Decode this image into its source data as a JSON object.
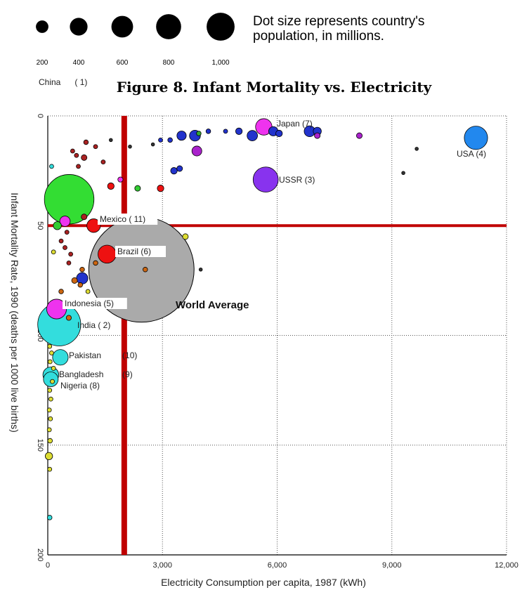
{
  "chart_data": {
    "type": "scatter",
    "title": "Figure 8.  Infant Mortality vs. Electricity",
    "xlabel": "Electricity  Consumption per capita, 1987 (kWh)",
    "ylabel": "Infant Mortality Rate, 1990 (deaths per 1000 live births)",
    "xlim": [
      0,
      12000
    ],
    "ylim": [
      0,
      200
    ],
    "y_inverted": true,
    "xticks": [
      "0",
      "3,000",
      "6,000",
      "9,000",
      "12,000"
    ],
    "yticks": [
      "0",
      "50",
      "100",
      "150",
      "200"
    ],
    "xtick_values": [
      0,
      3000,
      6000,
      9000,
      12000
    ],
    "ytick_values": [
      0,
      50,
      100,
      150,
      200
    ],
    "grid": "dotted",
    "size_legend": {
      "text_line1": "Dot size represents country's",
      "text_line2": "population, in millions.",
      "values": [
        200,
        400,
        600,
        800,
        1000
      ],
      "labels": [
        "200",
        "400",
        "600",
        "800",
        "1,000"
      ]
    },
    "world_average": {
      "label": "World Average",
      "x": 2000,
      "y": 50,
      "color": "#c00000"
    },
    "labeled_points": [
      {
        "label": "China      ( 1)",
        "x": 560,
        "y": 38,
        "pop": 1130,
        "color": "#33dd33"
      },
      {
        "label": "India ( 2)",
        "x": 300,
        "y": 95,
        "pop": 850,
        "color": "#33dddd"
      },
      {
        "label": "USSR (3)",
        "x": 5700,
        "y": 29,
        "pop": 290,
        "color": "#8833ee"
      },
      {
        "label": "USA (4)",
        "x": 11200,
        "y": 10,
        "pop": 250,
        "color": "#2288ee"
      },
      {
        "label": "Indonesia (5)",
        "x": 230,
        "y": 88,
        "pop": 180,
        "color": "#ee33ee"
      },
      {
        "label": "Brazil (6)",
        "x": 1550,
        "y": 63,
        "pop": 150,
        "color": "#ee1111"
      },
      {
        "label": "Japan (7)",
        "x": 5650,
        "y": 5,
        "pop": 124,
        "color": "#ee33ee"
      },
      {
        "label": "Nigeria (8)",
        "x": 80,
        "y": 120,
        "pop": 100,
        "color": "#33dddd"
      },
      {
        "label": "Bangladesh        (9)",
        "x": 80,
        "y": 118,
        "pop": 115,
        "color": "#33dddd"
      },
      {
        "label": "Pakistan         (10)",
        "x": 330,
        "y": 110,
        "pop": 112,
        "color": "#33dddd"
      },
      {
        "label": "Mexico ( 11)",
        "x": 1200,
        "y": 50,
        "pop": 85,
        "color": "#ee1111"
      }
    ],
    "world_avg_bubble": {
      "x": 2450,
      "y": 70,
      "pop": 5300,
      "color": "#aaaaaa"
    },
    "other_points": [
      {
        "x": 900,
        "y": 74,
        "pop": 60,
        "color": "#2233cc"
      },
      {
        "x": 3500,
        "y": 9,
        "pop": 40,
        "color": "#2233cc"
      },
      {
        "x": 3850,
        "y": 9,
        "pop": 55,
        "color": "#2233cc"
      },
      {
        "x": 5000,
        "y": 7,
        "pop": 20,
        "color": "#2233cc"
      },
      {
        "x": 5350,
        "y": 9,
        "pop": 50,
        "color": "#2233cc"
      },
      {
        "x": 5900,
        "y": 7,
        "pop": 40,
        "color": "#2233cc"
      },
      {
        "x": 6850,
        "y": 7,
        "pop": 55,
        "color": "#2233cc"
      },
      {
        "x": 7050,
        "y": 7,
        "pop": 30,
        "color": "#2233cc"
      },
      {
        "x": 6050,
        "y": 8,
        "pop": 20,
        "color": "#2233cc"
      },
      {
        "x": 4200,
        "y": 7,
        "pop": 10,
        "color": "#2233cc"
      },
      {
        "x": 4650,
        "y": 7,
        "pop": 8,
        "color": "#2233cc"
      },
      {
        "x": 3300,
        "y": 25,
        "pop": 20,
        "color": "#2233cc"
      },
      {
        "x": 3450,
        "y": 24,
        "pop": 15,
        "color": "#2233cc"
      },
      {
        "x": 3200,
        "y": 11,
        "pop": 10,
        "color": "#2233cc"
      },
      {
        "x": 2950,
        "y": 11,
        "pop": 8,
        "color": "#2233cc"
      },
      {
        "x": 3900,
        "y": 16,
        "pop": 45,
        "color": "#aa22cc"
      },
      {
        "x": 3950,
        "y": 8,
        "pop": 10,
        "color": "#33aa33"
      },
      {
        "x": 7050,
        "y": 9,
        "pop": 15,
        "color": "#aa22cc"
      },
      {
        "x": 8150,
        "y": 9,
        "pop": 15,
        "color": "#aa22cc"
      },
      {
        "x": 1900,
        "y": 29,
        "pop": 12,
        "color": "#ee33ee"
      },
      {
        "x": 250,
        "y": 50,
        "pop": 30,
        "color": "#33cc33"
      },
      {
        "x": 450,
        "y": 48,
        "pop": 50,
        "color": "#ee33ee"
      },
      {
        "x": 2350,
        "y": 33,
        "pop": 15,
        "color": "#33cc33"
      },
      {
        "x": 2950,
        "y": 33,
        "pop": 20,
        "color": "#ee1111"
      },
      {
        "x": 1650,
        "y": 32,
        "pop": 20,
        "color": "#ee1111"
      },
      {
        "x": 1000,
        "y": 12,
        "pop": 10,
        "color": "#aa2222"
      },
      {
        "x": 1250,
        "y": 14,
        "pop": 8,
        "color": "#aa2222"
      },
      {
        "x": 950,
        "y": 19,
        "pop": 15,
        "color": "#aa2222"
      },
      {
        "x": 650,
        "y": 16,
        "pop": 8,
        "color": "#aa2222"
      },
      {
        "x": 750,
        "y": 18,
        "pop": 8,
        "color": "#aa2222"
      },
      {
        "x": 1450,
        "y": 21,
        "pop": 8,
        "color": "#aa2222"
      },
      {
        "x": 800,
        "y": 23,
        "pop": 8,
        "color": "#aa2222"
      },
      {
        "x": 950,
        "y": 46,
        "pop": 15,
        "color": "#aa2222"
      },
      {
        "x": 500,
        "y": 53,
        "pop": 8,
        "color": "#aa2222"
      },
      {
        "x": 350,
        "y": 57,
        "pop": 8,
        "color": "#aa2222"
      },
      {
        "x": 450,
        "y": 60,
        "pop": 8,
        "color": "#aa2222"
      },
      {
        "x": 600,
        "y": 63,
        "pop": 8,
        "color": "#aa2222"
      },
      {
        "x": 550,
        "y": 67,
        "pop": 8,
        "color": "#aa2222"
      },
      {
        "x": 1250,
        "y": 67,
        "pop": 10,
        "color": "#cc6611"
      },
      {
        "x": 2550,
        "y": 70,
        "pop": 10,
        "color": "#cc6611"
      },
      {
        "x": 900,
        "y": 70,
        "pop": 10,
        "color": "#cc6611"
      },
      {
        "x": 700,
        "y": 75,
        "pop": 15,
        "color": "#cc6611"
      },
      {
        "x": 850,
        "y": 77,
        "pop": 10,
        "color": "#cc6611"
      },
      {
        "x": 350,
        "y": 80,
        "pop": 10,
        "color": "#cc6611"
      },
      {
        "x": 550,
        "y": 92,
        "pop": 12,
        "color": "#cc6611"
      },
      {
        "x": 3600,
        "y": 55,
        "pop": 15,
        "color": "#dddd33"
      },
      {
        "x": 150,
        "y": 62,
        "pop": 8,
        "color": "#dddd33"
      },
      {
        "x": 1050,
        "y": 80,
        "pop": 8,
        "color": "#dddd33"
      },
      {
        "x": 4000,
        "y": 70,
        "pop": 5,
        "color": "#333333"
      },
      {
        "x": 9300,
        "y": 26,
        "pop": 5,
        "color": "#333333"
      },
      {
        "x": 9650,
        "y": 15,
        "pop": 5,
        "color": "#333333"
      },
      {
        "x": 2750,
        "y": 13,
        "pop": 5,
        "color": "#333333"
      },
      {
        "x": 2150,
        "y": 14,
        "pop": 5,
        "color": "#333333"
      },
      {
        "x": 1650,
        "y": 11,
        "pop": 5,
        "color": "#333333"
      },
      {
        "x": 100,
        "y": 23,
        "pop": 8,
        "color": "#33dddd"
      },
      {
        "x": 50,
        "y": 183,
        "pop": 10,
        "color": "#33dddd"
      },
      {
        "x": 50,
        "y": 105,
        "pop": 8,
        "color": "#dddd33"
      },
      {
        "x": 100,
        "y": 108,
        "pop": 8,
        "color": "#dddd33"
      },
      {
        "x": 60,
        "y": 112,
        "pop": 8,
        "color": "#dddd33"
      },
      {
        "x": 150,
        "y": 115,
        "pop": 8,
        "color": "#dddd33"
      },
      {
        "x": 50,
        "y": 125,
        "pop": 8,
        "color": "#dddd33"
      },
      {
        "x": 80,
        "y": 129,
        "pop": 8,
        "color": "#dddd33"
      },
      {
        "x": 40,
        "y": 134,
        "pop": 8,
        "color": "#dddd33"
      },
      {
        "x": 70,
        "y": 138,
        "pop": 8,
        "color": "#dddd33"
      },
      {
        "x": 40,
        "y": 143,
        "pop": 8,
        "color": "#dddd33"
      },
      {
        "x": 60,
        "y": 148,
        "pop": 10,
        "color": "#dddd33"
      },
      {
        "x": 30,
        "y": 155,
        "pop": 25,
        "color": "#dddd33"
      },
      {
        "x": 50,
        "y": 161,
        "pop": 8,
        "color": "#dddd33"
      },
      {
        "x": 120,
        "y": 121,
        "pop": 8,
        "color": "#dddd33"
      }
    ]
  }
}
